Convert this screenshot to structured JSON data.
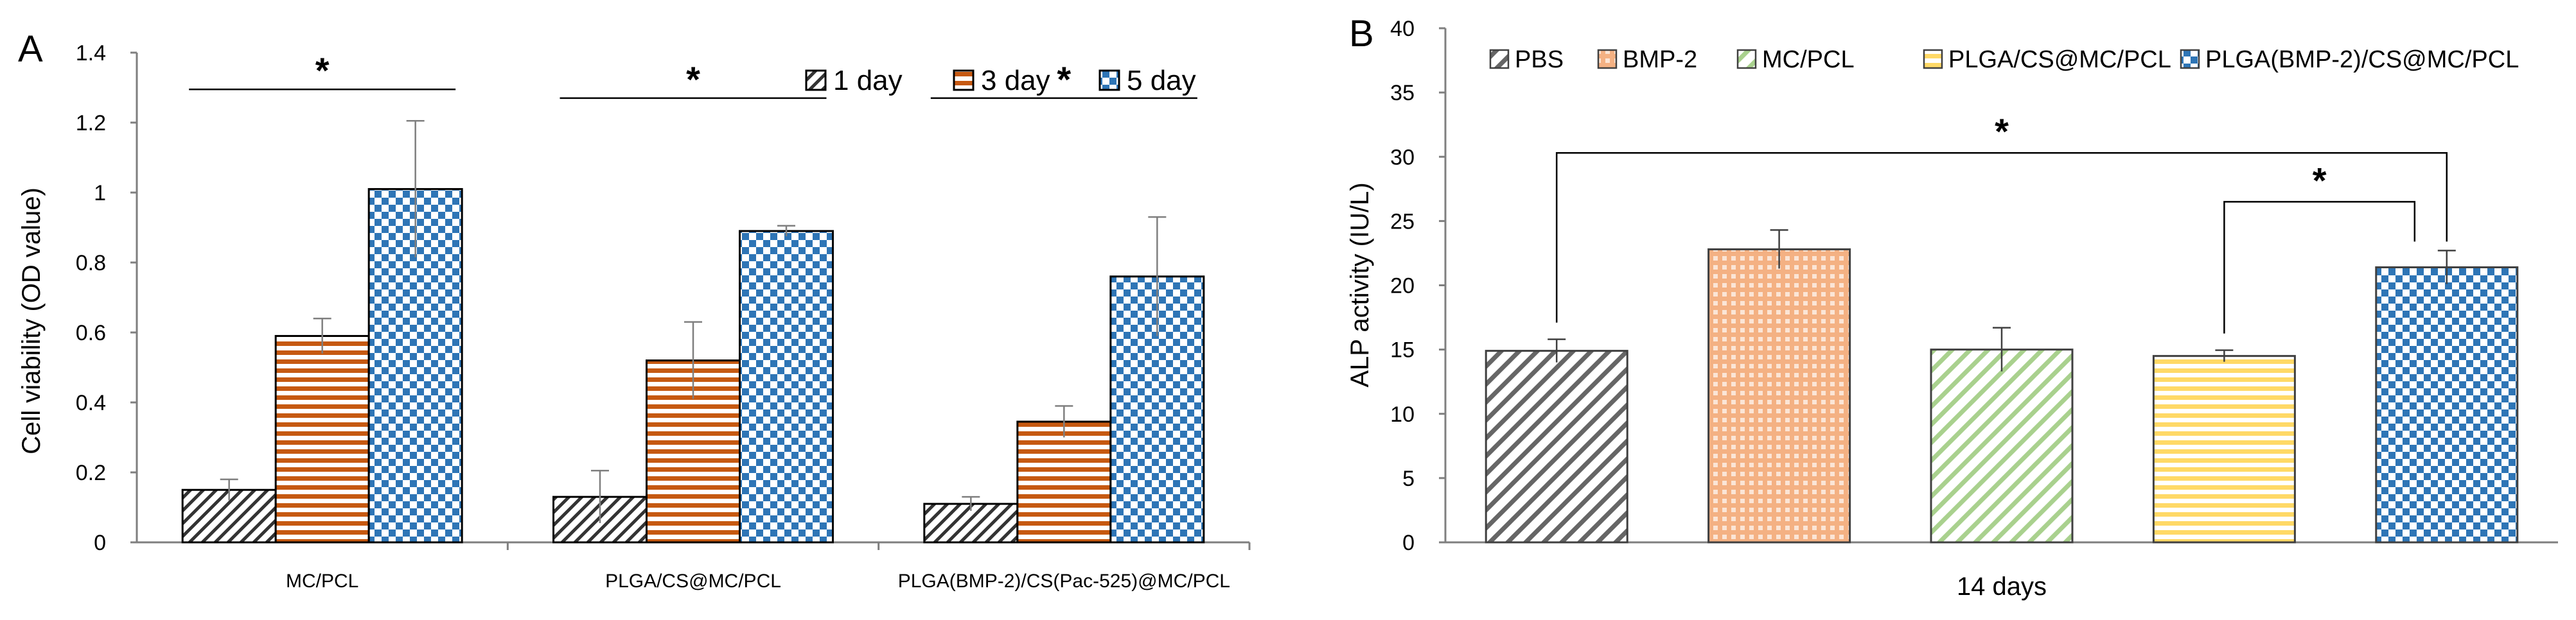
{
  "chart_data": [
    {
      "panel": "A",
      "type": "bar",
      "ylabel": "Cell viability  (OD value)",
      "xlabel": "",
      "ylim": [
        0,
        1.4
      ],
      "yticks": [
        "0",
        "0.2",
        "0.4",
        "0.6",
        "0.8",
        "1",
        "1.2",
        "1.4"
      ],
      "grid": false,
      "legend_position": "top-right",
      "categories": [
        "MC/PCL",
        "PLGA/CS@MC/PCL",
        "PLGA(BMP-2)/CS(Pac-525)@MC/PCL"
      ],
      "series": [
        {
          "name": "1 day",
          "values": [
            0.15,
            0.13,
            0.11
          ],
          "errors": [
            0.03,
            0.075,
            0.02
          ],
          "color": "#333333",
          "pattern": "diagonal"
        },
        {
          "name": "3 day",
          "values": [
            0.59,
            0.52,
            0.345
          ],
          "errors": [
            0.05,
            0.11,
            0.045
          ],
          "color": "#c65911",
          "pattern": "horizontal"
        },
        {
          "name": "5 day",
          "values": [
            1.01,
            0.89,
            0.76
          ],
          "errors": [
            0.195,
            0.015,
            0.17
          ],
          "color": "#2e75b6",
          "pattern": "checker"
        }
      ],
      "annotations": [
        {
          "category": 0,
          "label": "*"
        },
        {
          "category": 1,
          "label": "*"
        },
        {
          "category": 2,
          "label": "*"
        }
      ]
    },
    {
      "panel": "B",
      "type": "bar",
      "ylabel": "ALP activity (IU/L)",
      "xlabel": "14 days",
      "ylim": [
        0,
        40
      ],
      "yticks": [
        "0",
        "5",
        "10",
        "15",
        "20",
        "25",
        "30",
        "35",
        "40"
      ],
      "grid": false,
      "legend_position": "top",
      "categories": [
        "PBS",
        "BMP-2",
        "MC/PCL",
        "PLGA/CS@MC/PCL",
        "PLGA(BMP-2)/CS@MC/PCL"
      ],
      "values": [
        14.9,
        22.8,
        15.0,
        14.5,
        21.4
      ],
      "errors": [
        0.9,
        1.5,
        1.7,
        0.45,
        1.3
      ],
      "colors": [
        "#666666",
        "#f4b183",
        "#a9d18e",
        "#ffd966",
        "#2e75b6"
      ],
      "patterns": [
        "diagonal",
        "grid",
        "diagonal",
        "horizontal",
        "checker"
      ],
      "annotations": [
        {
          "from": 0,
          "to": 4,
          "level": 30.3,
          "label": "*"
        },
        {
          "from": 3,
          "to": 4,
          "level": 26.5,
          "label": "*"
        }
      ]
    }
  ]
}
